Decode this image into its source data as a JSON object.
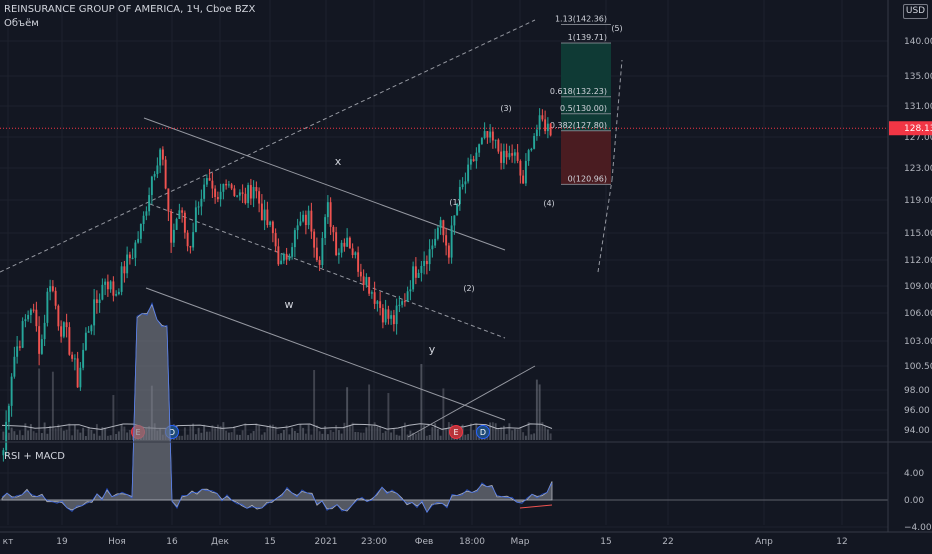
{
  "header": {
    "title": "REINSURANCE GROUP OF AMERICA, 1Ч, Cboe BZX",
    "volume_label": "Объём",
    "currency": "USD"
  },
  "indicator": {
    "label": "RSI + MACD"
  },
  "colors": {
    "background": "#131722",
    "grid": "#1e222d",
    "text": "#b2b5be",
    "up": "#26a69a",
    "down": "#ef5350",
    "trend_line": "#9598a1",
    "last_price": "#f23645",
    "fib_upper_fill": "#0f3a35",
    "fib_lower_fill": "#4a1c21",
    "rsi_fill": "#787b86"
  },
  "chart_data": [
    {
      "type": "candlestick",
      "title": "REINSURANCE GROUP OF AMERICA, 1Ч, Cboe BZX",
      "price_axis": {
        "ticks": [
          140.0,
          135.0,
          131.0,
          127.0,
          123.0,
          119.0,
          115.0,
          112.0,
          109.0,
          106.0,
          103.0,
          100.5,
          98.0,
          96.0,
          94.0
        ],
        "tick_labels": [
          "140.00",
          "135.00",
          "131.00",
          "127.00",
          "123.00",
          "119.00",
          "115.00",
          "112.00",
          "109.00",
          "106.00",
          "103.00",
          "100.50",
          "98.00",
          "96.00",
          "94.00"
        ],
        "last_price": "128.13"
      },
      "time_axis": {
        "labels": [
          "кт",
          "19",
          "Ноя",
          "16",
          "Дек",
          "15",
          "2021",
          "23:00",
          "Фев",
          "18:00",
          "Мар",
          "15",
          "22",
          "Апр",
          "12"
        ]
      },
      "fibonacci": [
        {
          "ratio": "1.13",
          "price": 142.36,
          "label": "1.13(142.36)"
        },
        {
          "ratio": "1",
          "price": 139.71,
          "label": "1(139.71)"
        },
        {
          "ratio": "0.618",
          "price": 132.23,
          "label": "0.618(132.23)"
        },
        {
          "ratio": "0.5",
          "price": 130.0,
          "label": "0.5(130.00)"
        },
        {
          "ratio": "0.382",
          "price": 127.8,
          "label": "0.382(127.80)"
        },
        {
          "ratio": "0",
          "price": 120.96,
          "label": "0(120.96)"
        }
      ],
      "wave_labels": [
        "x",
        "w",
        "y",
        "(1)",
        "(2)",
        "(3)",
        "(4)",
        "(5)"
      ],
      "event_markers": [
        "E",
        "D",
        "E",
        "D"
      ],
      "approx_close_path": [
        92,
        101,
        104,
        107,
        102,
        110,
        105,
        103,
        99,
        104,
        107,
        110,
        108,
        111,
        113,
        116,
        122,
        126,
        114,
        118,
        113,
        119,
        121,
        118,
        122,
        120,
        119,
        121,
        117,
        115,
        111,
        114,
        116,
        117,
        112,
        118,
        113,
        115,
        112,
        110,
        108,
        106,
        105,
        107,
        110,
        112,
        113,
        116,
        113,
        119,
        122,
        125,
        127,
        126,
        124,
        125,
        121,
        127,
        129,
        128
      ]
    },
    {
      "type": "area",
      "title": "RSI + MACD",
      "y_axis": {
        "ticks": [
          4.0,
          0.0,
          -4.0
        ],
        "tick_labels": [
          "4.00",
          "0.00",
          "−4.00"
        ]
      }
    }
  ]
}
